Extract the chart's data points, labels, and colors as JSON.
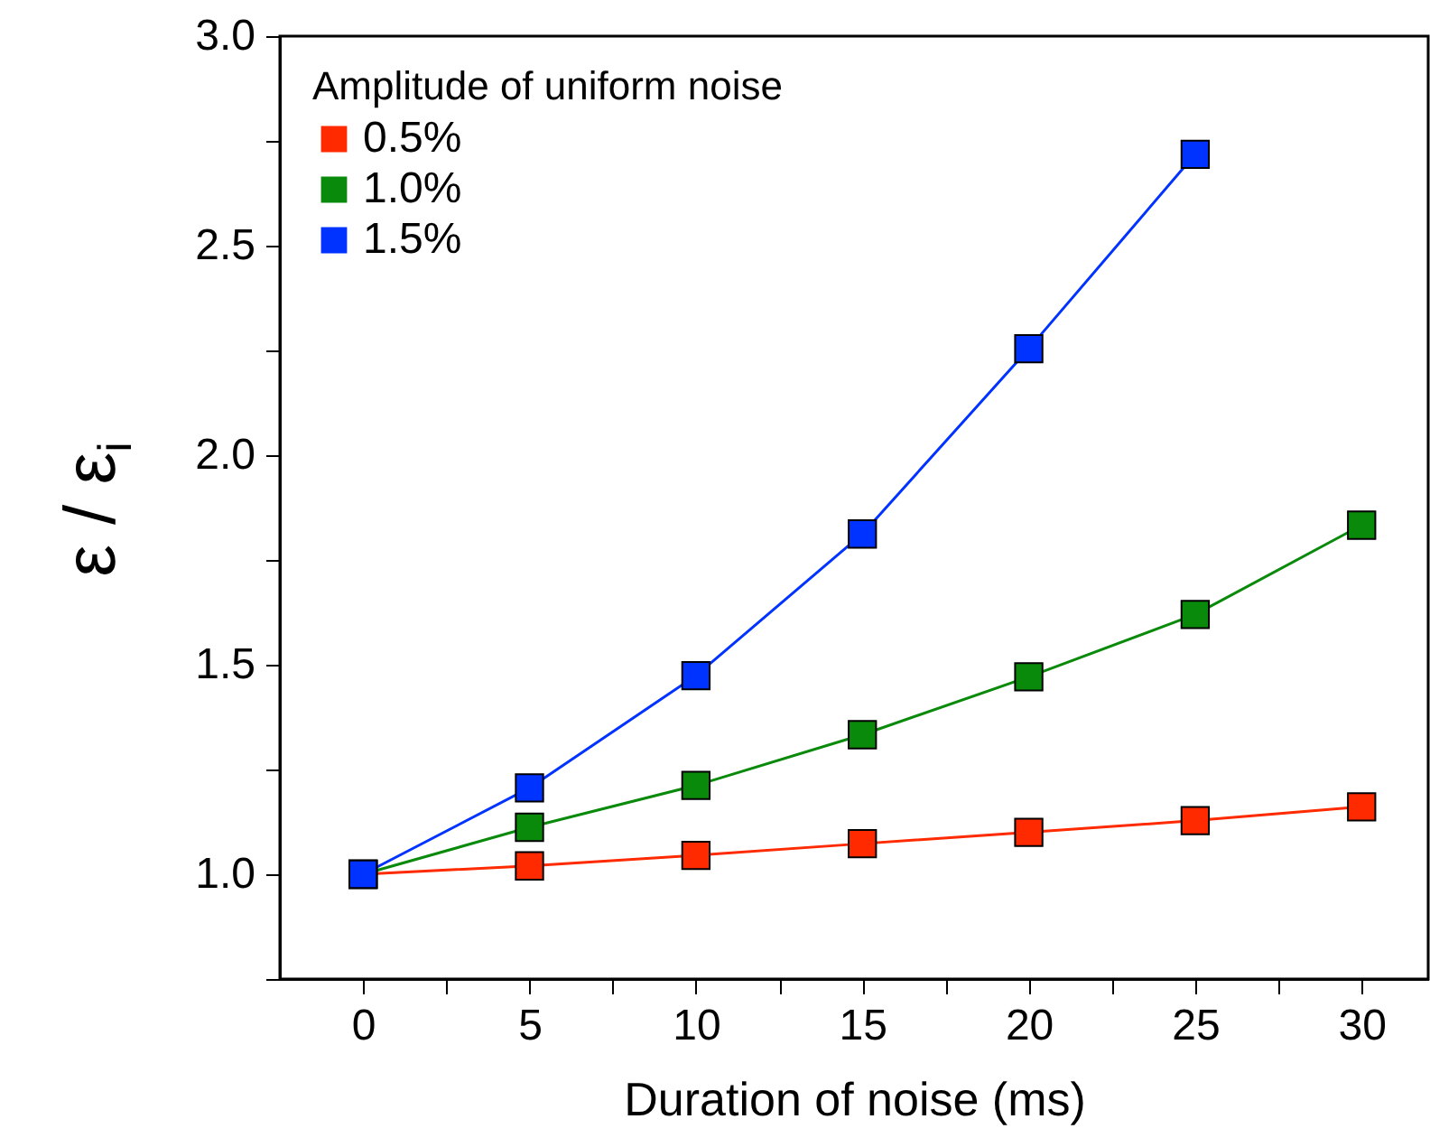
{
  "chart_data": {
    "type": "line",
    "xlabel": "Duration of noise (ms)",
    "ylabel": "ε / ε$_{i}$",
    "legend_title": "Amplitude of uniform noise",
    "legend": "top left",
    "marker": "square",
    "grid": false,
    "x": [
      0,
      5,
      10,
      15,
      20,
      25,
      30
    ],
    "series": [
      {
        "name": "0.5%",
        "color": "#ff2a00",
        "values": [
          1.0,
          1.02,
          1.045,
          1.073,
          1.1,
          1.128,
          1.161
        ]
      },
      {
        "name": "1.0%",
        "color": "#0a8a0a",
        "values": [
          1.0,
          1.112,
          1.212,
          1.333,
          1.471,
          1.62,
          1.833
        ]
      },
      {
        "name": "1.5%",
        "color": "#0033ff",
        "values": [
          1.0,
          1.206,
          1.474,
          1.812,
          2.254,
          2.718,
          null
        ]
      }
    ],
    "xlim": [
      -2.5,
      32
    ],
    "ylim": [
      0.75,
      3.0
    ],
    "xticks": [
      0,
      {
        "value": 2.5,
        "label": null
      },
      5,
      {
        "value": 7.5,
        "label": null
      },
      10,
      {
        "value": 12.5,
        "label": null
      },
      15,
      {
        "value": 17.5,
        "label": null
      },
      20,
      {
        "value": 22.5,
        "label": null
      },
      25,
      {
        "value": 27.5,
        "label": null
      },
      30
    ],
    "yticks": [
      {
        "value": 0.75,
        "label": null
      },
      {
        "value": 1,
        "label": "1.0"
      },
      {
        "value": 1.25,
        "label": null
      },
      1.5,
      {
        "value": 1.75,
        "label": null
      },
      {
        "value": 2,
        "label": "2.0"
      },
      {
        "value": 2.25,
        "label": null
      },
      2.5,
      {
        "value": 2.75,
        "label": null
      },
      {
        "value": 3,
        "label": "3.0"
      }
    ]
  }
}
